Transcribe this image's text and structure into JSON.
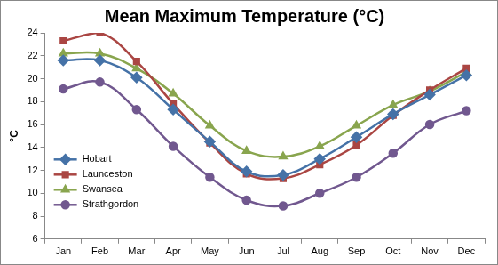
{
  "chart_data": {
    "type": "line",
    "title": "Mean Maximum Temperature (°C)",
    "y_label": "°C",
    "categories": [
      "Jan",
      "Feb",
      "Mar",
      "Apr",
      "May",
      "Jun",
      "Jul",
      "Aug",
      "Sep",
      "Oct",
      "Nov",
      "Dec"
    ],
    "series": [
      {
        "name": "Hobart",
        "color": "#4572a7",
        "marker": "diamond",
        "values": [
          21.6,
          21.6,
          20.1,
          17.3,
          14.5,
          11.9,
          11.6,
          13.0,
          14.9,
          16.9,
          18.6,
          20.3
        ]
      },
      {
        "name": "Launceston",
        "color": "#aa4643",
        "marker": "square",
        "values": [
          23.3,
          24.0,
          21.5,
          17.8,
          14.4,
          11.7,
          11.3,
          12.5,
          14.2,
          16.8,
          19.0,
          20.9
        ]
      },
      {
        "name": "Swansea",
        "color": "#89a54e",
        "marker": "triangle",
        "values": [
          22.2,
          22.2,
          20.9,
          18.7,
          15.9,
          13.7,
          13.2,
          14.1,
          15.9,
          17.7,
          18.9,
          20.6
        ]
      },
      {
        "name": "Strathgordon",
        "color": "#71588f",
        "marker": "circle",
        "values": [
          19.1,
          19.7,
          17.3,
          14.1,
          11.4,
          9.4,
          8.9,
          10.0,
          11.4,
          13.5,
          16.0,
          17.2
        ]
      }
    ],
    "ylim": [
      6,
      24
    ],
    "yticks": [
      6,
      8,
      10,
      12,
      14,
      16,
      18,
      20,
      22,
      24
    ],
    "grid": false,
    "legend": "lower left"
  }
}
